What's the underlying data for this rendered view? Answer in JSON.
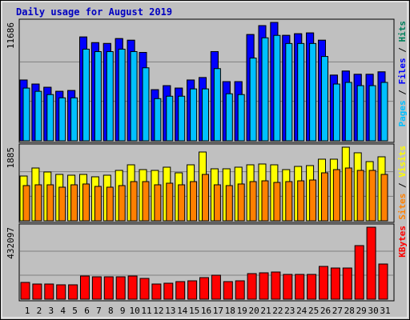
{
  "chart_data": [
    {
      "type": "bar",
      "title": "Daily usage for August 2019",
      "ylim": [
        0,
        11686
      ],
      "yticks": [
        11686
      ],
      "separator": " / ",
      "series": [
        {
          "name": "Hits",
          "color": "#00805c",
          "values": [
            6003,
            5603,
            5283,
            4883,
            4963,
            10245,
            9685,
            9605,
            10085,
            9925,
            8725,
            5043,
            5443,
            5203,
            6003,
            6243,
            8805,
            5843,
            5843,
            10485,
            11366,
            11686,
            10405,
            10565,
            10645,
            9925,
            6483,
            6883,
            6563,
            6563,
            6803
          ]
        },
        {
          "name": "Files",
          "color": "#0000ff",
          "values": [
            6003,
            5603,
            5283,
            4883,
            4963,
            10245,
            9685,
            9605,
            10085,
            9925,
            8725,
            5043,
            5443,
            5203,
            6003,
            6243,
            8805,
            5843,
            5843,
            10485,
            11366,
            11686,
            10405,
            10565,
            10645,
            9925,
            6483,
            6883,
            6563,
            6563,
            6803
          ]
        },
        {
          "name": "Pages",
          "color": "#00c0ff",
          "values": [
            5203,
            4883,
            4563,
            4242,
            4242,
            9045,
            8805,
            8805,
            9045,
            8805,
            7204,
            4162,
            4402,
            4402,
            5123,
            5123,
            7124,
            4643,
            4563,
            8164,
            10165,
            10405,
            9605,
            9605,
            9605,
            8324,
            5603,
            5763,
            5443,
            5443,
            5763
          ]
        }
      ]
    },
    {
      "type": "bar",
      "ylim": [
        0,
        1885
      ],
      "yticks": [
        1885
      ],
      "separator": " / ",
      "series": [
        {
          "name": "Visits",
          "color": "#ffff00",
          "values": [
            1147,
            1352,
            1250,
            1188,
            1168,
            1188,
            1127,
            1168,
            1291,
            1434,
            1311,
            1291,
            1373,
            1229,
            1434,
            1762,
            1332,
            1332,
            1373,
            1434,
            1455,
            1434,
            1311,
            1393,
            1414,
            1578,
            1578,
            1885,
            1742,
            1516,
            1639
          ]
        },
        {
          "name": "Sites",
          "color": "#ff8000",
          "values": [
            902,
            922,
            922,
            861,
            922,
            943,
            881,
            861,
            902,
            1004,
            1004,
            922,
            963,
            922,
            1004,
            1188,
            922,
            902,
            943,
            1004,
            1024,
            983,
            1004,
            1024,
            1045,
            1229,
            1311,
            1352,
            1291,
            1291,
            1188
          ]
        }
      ]
    },
    {
      "type": "bar",
      "ylim": [
        0,
        432097
      ],
      "yticks": [
        432097
      ],
      "categories": [
        "1",
        "2",
        "3",
        "4",
        "5",
        "6",
        "7",
        "8",
        "9",
        "10",
        "11",
        "12",
        "13",
        "14",
        "15",
        "16",
        "17",
        "18",
        "19",
        "20",
        "21",
        "22",
        "23",
        "24",
        "25",
        "26",
        "27",
        "28",
        "29",
        "30",
        "31"
      ],
      "category_colors": [
        "#000",
        "#000",
        "#00805c",
        "#00805c",
        "#000",
        "#000",
        "#000",
        "#000",
        "#000",
        "#00805c",
        "#00805c",
        "#000",
        "#000",
        "#000",
        "#000",
        "#000",
        "#00805c",
        "#00805c",
        "#000",
        "#000",
        "#000",
        "#000",
        "#000",
        "#00805c",
        "#00805c",
        "#000",
        "#000",
        "#000",
        "#000",
        "#000",
        "#00805c"
      ],
      "series": [
        {
          "name": "KBytes",
          "color": "#ff0000",
          "values": [
            100823,
            91220,
            91220,
            86419,
            86419,
            139231,
            134430,
            134430,
            134430,
            139231,
            124828,
            91220,
            96022,
            105624,
            110425,
            129629,
            144032,
            105624,
            110425,
            153635,
            158437,
            163237,
            148834,
            148834,
            148834,
            196844,
            187243,
            187243,
            321672,
            432097,
            211247
          ]
        }
      ]
    }
  ]
}
